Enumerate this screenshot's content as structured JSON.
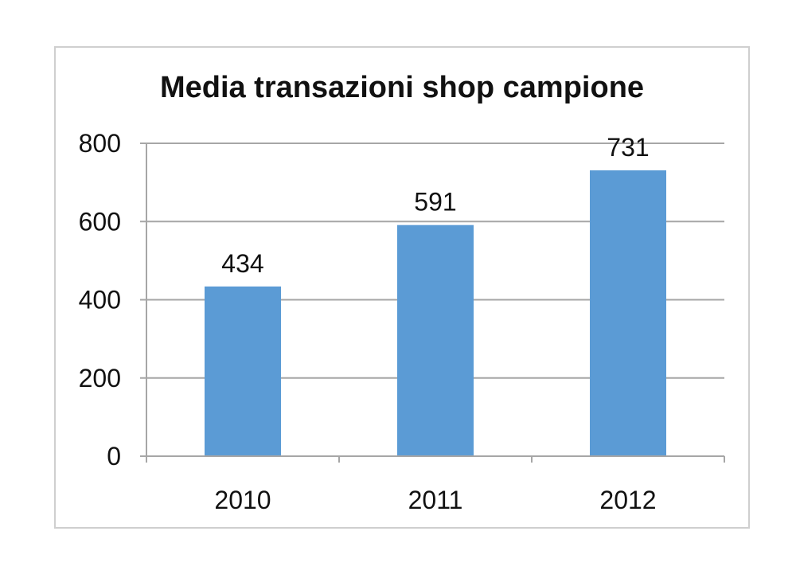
{
  "chart_data": {
    "type": "bar",
    "title": "Media transazioni shop campione",
    "categories": [
      "2010",
      "2011",
      "2012"
    ],
    "values": [
      434,
      591,
      731
    ],
    "data_labels": [
      "434",
      "591",
      "731"
    ],
    "ylim": [
      0,
      800
    ],
    "yticks": [
      0,
      200,
      400,
      600,
      800
    ],
    "ytick_labels": [
      "0",
      "200",
      "400",
      "600",
      "800"
    ],
    "xlabel": "",
    "ylabel": "",
    "grid": true,
    "legend": "none",
    "colors": {
      "bar": "#5b9bd5",
      "grid": "#a6a6a6",
      "axis": "#a6a6a6",
      "frame": "#cfcfcf"
    }
  }
}
